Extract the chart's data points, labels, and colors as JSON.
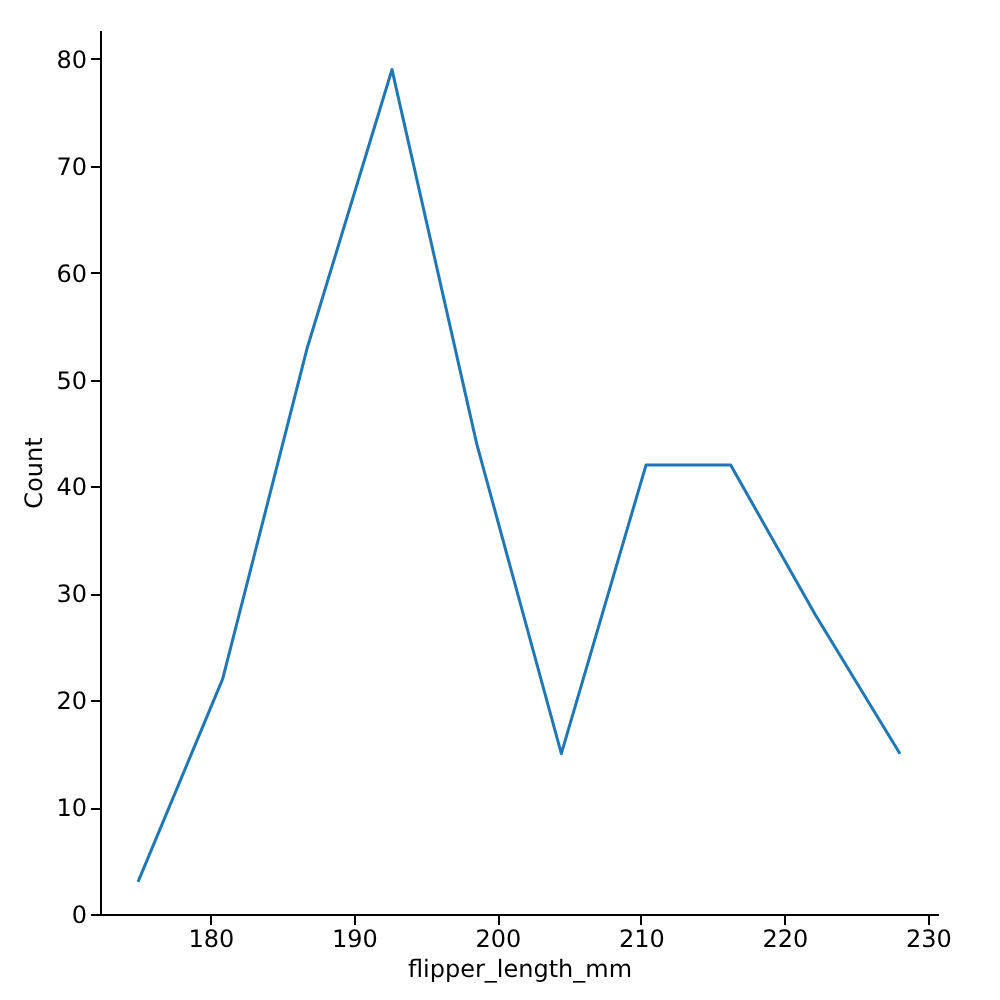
{
  "chart_data": {
    "type": "line",
    "xlabel": "flipper_length_mm",
    "ylabel": "Count",
    "x": [
      174.95,
      180.85,
      186.75,
      192.65,
      198.55,
      204.45,
      210.35,
      216.25,
      222.15,
      228.05
    ],
    "series": [
      {
        "color": "#1f77b4",
        "values": [
          3,
          22,
          53,
          79,
          44,
          15,
          42,
          42,
          28,
          15
        ]
      }
    ],
    "xlim": [
      172.3,
      230.7
    ],
    "xticks": [
      180,
      190,
      200,
      210,
      220,
      230
    ],
    "ylim": [
      0,
      82.7
    ],
    "yticks": [
      0,
      10,
      20,
      30,
      40,
      50,
      60,
      70,
      80
    ],
    "grid": false,
    "marker": "none",
    "line_style": "solid"
  }
}
